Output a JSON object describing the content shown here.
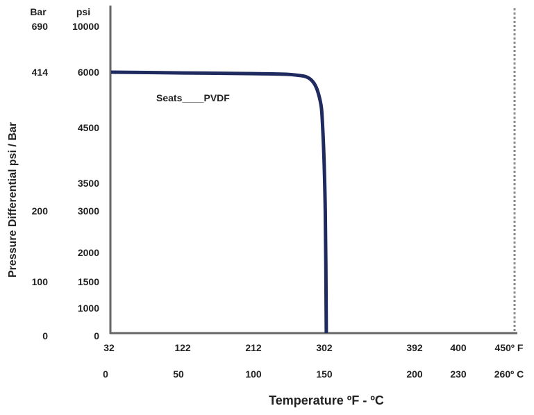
{
  "chart_data": {
    "type": "line",
    "xlabel": "Temperature ºF - ºC",
    "ylabel": "Pressure Differential psi / Bar",
    "y_unit_headers": {
      "bar": "Bar",
      "psi": "psi"
    },
    "x_ticks_f": [
      "32",
      "122",
      "212",
      "302",
      "392",
      "400",
      "450º F"
    ],
    "x_ticks_c": [
      "0",
      "50",
      "100",
      "150",
      "200",
      "230",
      "260º C"
    ],
    "y_ticks_psi": [
      "10000",
      "6000",
      "4500",
      "3500",
      "3000",
      "2000",
      "1500",
      "1000",
      "0"
    ],
    "y_ticks_bar": [
      "690",
      "414",
      "",
      "",
      "200",
      "",
      "100",
      "",
      "0"
    ],
    "max_temp_line": {
      "x": "450",
      "style": "dotted",
      "color": "#888888"
    },
    "series": [
      {
        "name": "Seats____PVDF",
        "color": "#1f2a5e",
        "points": [
          {
            "x": 32,
            "y": 6000
          },
          {
            "x": 122,
            "y": 5980
          },
          {
            "x": 212,
            "y": 5960
          },
          {
            "x": 262,
            "y": 5930
          },
          {
            "x": 285,
            "y": 5800
          },
          {
            "x": 296,
            "y": 5300
          },
          {
            "x": 300,
            "y": 4500
          },
          {
            "x": 303,
            "y": 3000
          },
          {
            "x": 304,
            "y": 0
          }
        ]
      }
    ]
  }
}
